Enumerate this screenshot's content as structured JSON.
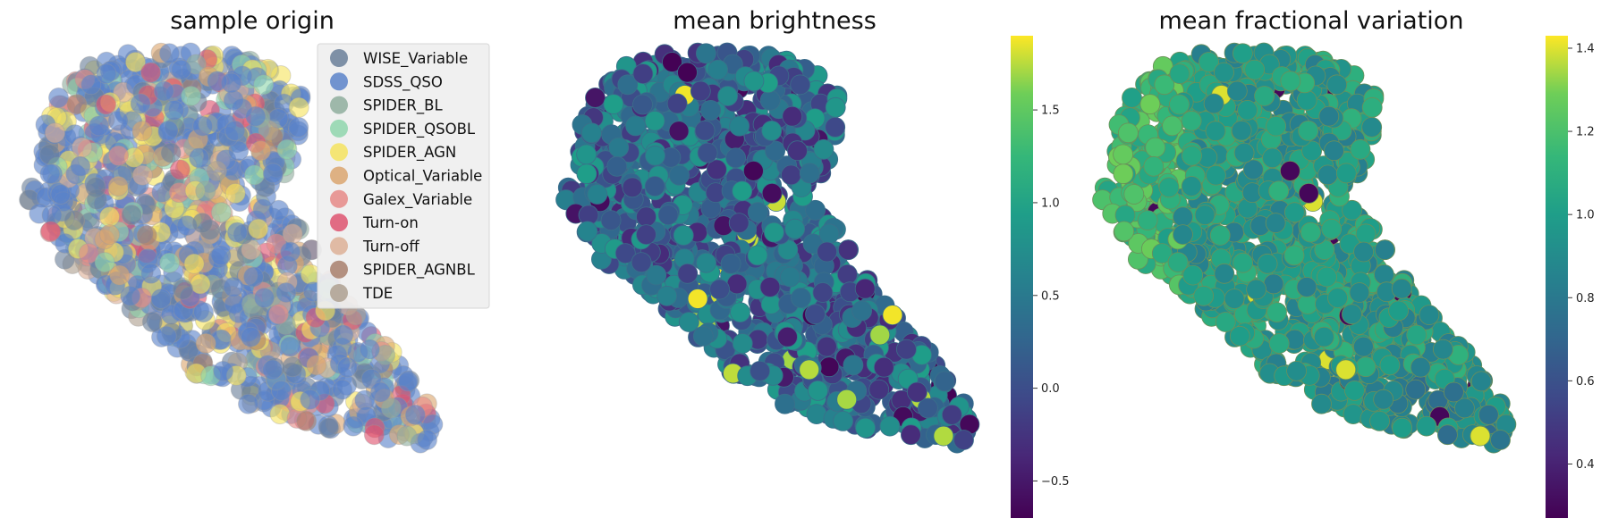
{
  "chart_data": [
    {
      "type": "scatter",
      "title": "sample origin",
      "axes_visible": false,
      "legend_position": "top-right",
      "series": [
        {
          "name": "WISE_Variable",
          "color": "#6a7f99"
        },
        {
          "name": "SDSS_QSO",
          "color": "#5b82c9"
        },
        {
          "name": "SPIDER_BL",
          "color": "#8fae9e"
        },
        {
          "name": "SPIDER_QSOBL",
          "color": "#8fd6ad"
        },
        {
          "name": "SPIDER_AGN",
          "color": "#f5e35f"
        },
        {
          "name": "Optical_Variable",
          "color": "#dba670"
        },
        {
          "name": "Galex_Variable",
          "color": "#e68a87"
        },
        {
          "name": "Turn-on",
          "color": "#de5470"
        },
        {
          "name": "Turn-off",
          "color": "#ddb097"
        },
        {
          "name": "SPIDER_AGNBL",
          "color": "#a87f6c"
        },
        {
          "name": "TDE",
          "color": "#aea090"
        }
      ]
    },
    {
      "type": "scatter",
      "title": "mean brightness",
      "axes_visible": false,
      "colormap": "viridis",
      "colorbar": {
        "min": -0.7,
        "max": 1.9,
        "ticks": [
          -0.5,
          0.0,
          0.5,
          1.0,
          1.5
        ],
        "tick_labels": [
          "−0.5",
          "0.0",
          "0.5",
          "1.0",
          "1.5"
        ]
      }
    },
    {
      "type": "scatter",
      "title": "mean fractional variation",
      "axes_visible": false,
      "colormap": "viridis",
      "colorbar": {
        "min": 0.27,
        "max": 1.43,
        "ticks": [
          0.4,
          0.6,
          0.8,
          1.0,
          1.2,
          1.4
        ],
        "tick_labels": [
          "0.4",
          "0.6",
          "0.8",
          "1.0",
          "1.2",
          "1.4"
        ]
      }
    }
  ]
}
